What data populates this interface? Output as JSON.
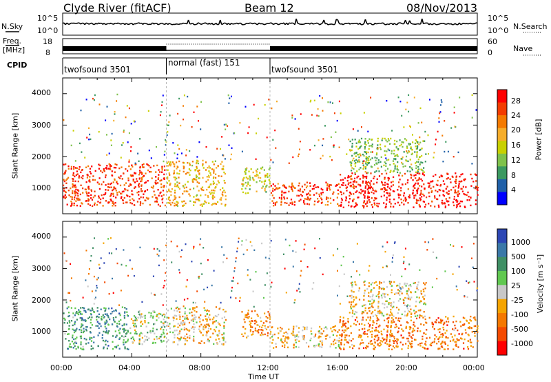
{
  "header": {
    "station": "Clyde River (fitACF)",
    "beam": "Beam 12",
    "date": "08/Nov/2013"
  },
  "noise_panel": {
    "left_label": "N.Sky",
    "right_label": "N.Search",
    "left_ticks": [
      "10^5",
      "10^0"
    ],
    "right_ticks": [
      "10^5",
      "10^0"
    ]
  },
  "freq_panel": {
    "left_label_line1": "Freq.",
    "left_label_line2": "[MHz]",
    "right_label": "Nave",
    "left_ticks": [
      "18",
      "8"
    ],
    "right_ticks": [
      "60",
      "0"
    ]
  },
  "cpid": {
    "label": "CPID",
    "segments": [
      {
        "name": "twofsound 3501",
        "start_hour": 0,
        "end_hour": 6
      },
      {
        "name": "normal (fast) 151",
        "start_hour": 6,
        "end_hour": 12
      },
      {
        "name": "twofsound 3501",
        "start_hour": 12,
        "end_hour": 24
      }
    ]
  },
  "power_scale": {
    "title": "Power [dB]",
    "ticks": [
      "28",
      "24",
      "20",
      "16",
      "12",
      "8",
      "4"
    ],
    "colors": [
      "#ff0000",
      "#f33c00",
      "#f47a00",
      "#f6ad2a",
      "#c8d000",
      "#7fc24b",
      "#3b9960",
      "#2060a8",
      "#0000ff"
    ]
  },
  "velocity_scale": {
    "title": "Velocity [m s⁻¹]",
    "ticks": [
      "1000",
      "500",
      "100",
      "25",
      "-25",
      "-100",
      "-500",
      "-1000"
    ],
    "colors": [
      "#2c46b4",
      "#3a78a8",
      "#3f8f64",
      "#60c850",
      "#c8c8c8",
      "#f5a400",
      "#f47800",
      "#f44a00",
      "#ff0000"
    ]
  },
  "x_axis": {
    "label": "Time UT",
    "ticks": [
      "00:00",
      "04:00",
      "08:00",
      "12:00",
      "16:00",
      "20:00",
      "00:00"
    ]
  },
  "chart_data": [
    {
      "type": "heatmap",
      "name": "power",
      "ylabel": "Slant Range [km]",
      "xlabel": "",
      "xlim": [
        0,
        24
      ],
      "ylim": [
        180,
        4500
      ],
      "yticks": [
        1000,
        2000,
        3000,
        4000
      ],
      "colorbar_label": "Power [dB]",
      "colorbar_range": [
        0,
        30
      ],
      "regions": [
        {
          "t0": 0.0,
          "t1": 5.9,
          "r0": 450,
          "r1": 1800,
          "value": 26
        },
        {
          "t0": 6.0,
          "t1": 9.4,
          "r0": 450,
          "r1": 1900,
          "value": 18
        },
        {
          "t0": 10.3,
          "t1": 12.0,
          "r0": 850,
          "r1": 1700,
          "value": 15
        },
        {
          "t0": 12.0,
          "t1": 16.0,
          "r0": 450,
          "r1": 1200,
          "value": 25
        },
        {
          "t0": 16.0,
          "t1": 24.0,
          "r0": 400,
          "r1": 1500,
          "value": 28
        },
        {
          "t0": 16.5,
          "t1": 21.0,
          "r0": 1500,
          "r1": 2600,
          "value": 12
        }
      ]
    },
    {
      "type": "heatmap",
      "name": "velocity",
      "ylabel": "Slant Range [km]",
      "xlabel": "Time UT",
      "xlim": [
        0,
        24
      ],
      "ylim": [
        180,
        4500
      ],
      "yticks": [
        1000,
        2000,
        3000,
        4000
      ],
      "colorbar_label": "Velocity [m s⁻¹]",
      "colorbar_range": [
        -1000,
        1000
      ],
      "regions": [
        {
          "t0": 0.0,
          "t1": 3.8,
          "r0": 450,
          "r1": 1800,
          "value": 450
        },
        {
          "t0": 3.8,
          "t1": 5.9,
          "r0": 600,
          "r1": 1700,
          "value": 100
        },
        {
          "t0": 6.0,
          "t1": 9.4,
          "r0": 600,
          "r1": 1800,
          "value": -150
        },
        {
          "t0": 10.3,
          "t1": 12.0,
          "r0": 800,
          "r1": 1700,
          "value": -400
        },
        {
          "t0": 12.0,
          "t1": 16.0,
          "r0": 500,
          "r1": 1200,
          "value": -150
        },
        {
          "t0": 16.0,
          "t1": 24.0,
          "r0": 450,
          "r1": 1500,
          "value": -450
        },
        {
          "t0": 16.5,
          "t1": 21.0,
          "r0": 1500,
          "r1": 2600,
          "value": -150
        }
      ]
    }
  ]
}
